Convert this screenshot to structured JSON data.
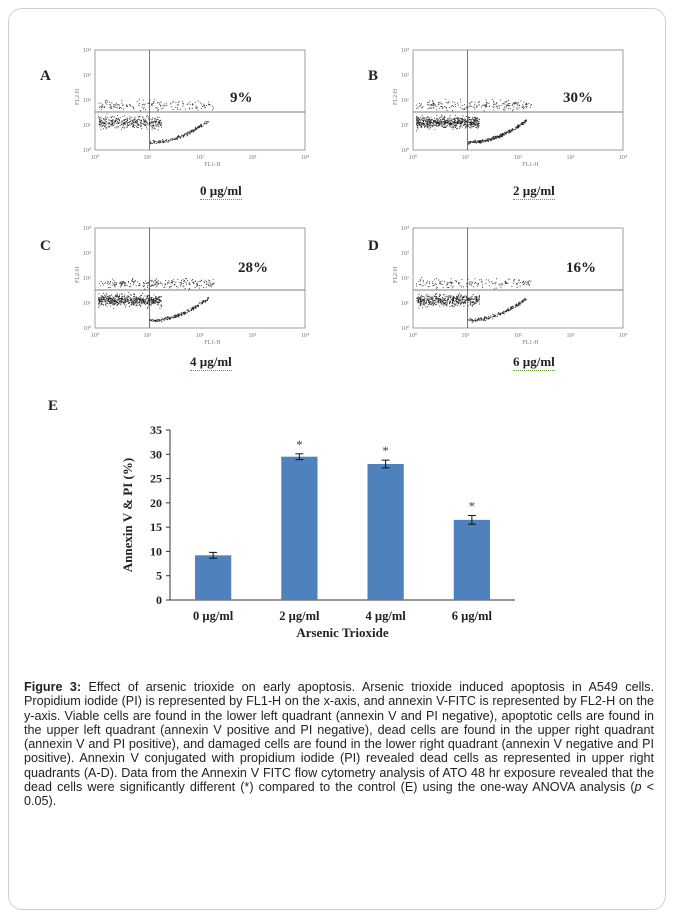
{
  "flow_panels": [
    {
      "letter": "A",
      "percent": "9%",
      "concentration": "0 µg/ml",
      "density": 0.8
    },
    {
      "letter": "B",
      "percent": "30%",
      "concentration": "2 µg/ml",
      "density": 1.25
    },
    {
      "letter": "C",
      "percent": "28%",
      "concentration": "4 µg/ml",
      "density": 1.15
    },
    {
      "letter": "D",
      "percent": "16%",
      "concentration": "6 µg/ml",
      "density": 0.95
    }
  ],
  "flow_axis": {
    "x_label": "FL1-H",
    "y_label": "FL2-H",
    "ticks": [
      "10⁰",
      "10¹",
      "10²",
      "10³",
      "10⁴"
    ]
  },
  "chart_letter": "E",
  "chart_data": {
    "type": "bar",
    "categories": [
      "0 µg/ml",
      "2 µg/ml",
      "4 µg/ml",
      "6 µg/ml"
    ],
    "values": [
      9.2,
      29.5,
      28.0,
      16.5
    ],
    "errors": [
      0.6,
      0.6,
      0.8,
      0.9
    ],
    "significance": [
      "",
      "*",
      "*",
      "*"
    ],
    "xlabel": "Arsenic Trioxide",
    "ylabel": "Annexin V & PI (%)",
    "ylim": [
      0,
      35
    ],
    "yticks": [
      0,
      5,
      10,
      15,
      20,
      25,
      30,
      35
    ],
    "bar_color": "#4f81bd"
  },
  "caption": {
    "label": "Figure 3:",
    "body_1": " Effect of arsenic trioxide on early apoptosis. Arsenic trioxide induced apoptosis in A549 cells. Propidium iodide (PI) is represented by FL1-H on the x-axis, and annexin V-FITC is represented by FL2-H on the y-axis. Viable cells are found in the lower left quadrant (annexin V and PI negative), apoptotic cells are found in the upper left quadrant (annexin V positive and PI negative), dead cells are found in the upper right quadrant (annexin V and PI positive), and damaged cells are found in the lower right quadrant (annexin V negative and PI positive). Annexin V conjugated with propidium iodide (PI) revealed dead cells as represented in upper right quadrants (A-D). Data from the Annexin V FITC flow cytometry analysis of ATO 48 hr exposure revealed that the dead cells were significantly different (*) compared to the control (E) using the one-way ANOVA analysis (",
    "p_symbol": "p",
    "body_2": " < 0.05)."
  }
}
